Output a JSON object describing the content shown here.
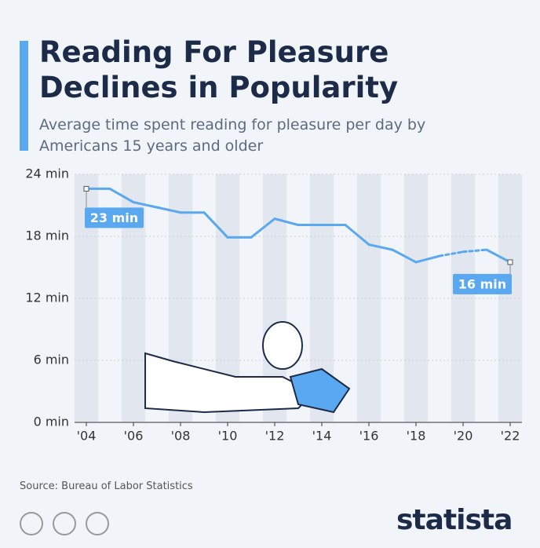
{
  "chart_data": {
    "type": "line",
    "title": "Reading For Pleasure Declines in Popularity",
    "subtitle": "Average time spent reading for pleasure per day by Americans 15 years and older",
    "x": [
      2004,
      2005,
      2006,
      2007,
      2008,
      2009,
      2010,
      2011,
      2012,
      2013,
      2014,
      2015,
      2016,
      2017,
      2018,
      2019,
      2020,
      2021,
      2022
    ],
    "series": [
      {
        "color": "#5aa8f0",
        "values": [
          22.6,
          22.6,
          21.3,
          20.8,
          20.3,
          20.3,
          17.9,
          17.9,
          19.7,
          19.1,
          19.1,
          19.1,
          17.2,
          16.7,
          15.5,
          16.1,
          16.5,
          16.7,
          15.5
        ],
        "value_labels": [
          "23 min",
          null,
          null,
          null,
          null,
          null,
          null,
          null,
          null,
          null,
          null,
          null,
          null,
          null,
          null,
          null,
          null,
          null,
          "16 min"
        ]
      }
    ],
    "dashed_from": 2019,
    "dashed_to": 2021,
    "xlim": [
      2003.5,
      2022.5
    ],
    "xticks": [
      {
        "value": 2004,
        "label": "'04"
      },
      {
        "value": 2006,
        "label": "'06"
      },
      {
        "value": 2008,
        "label": "'08"
      },
      {
        "value": 2010,
        "label": "'10"
      },
      {
        "value": 2012,
        "label": "'12"
      },
      {
        "value": 2014,
        "label": "'14"
      },
      {
        "value": 2016,
        "label": "'16"
      },
      {
        "value": 2018,
        "label": "'18"
      },
      {
        "value": 2020,
        "label": "'20"
      },
      {
        "value": 2022,
        "label": "'22"
      }
    ],
    "ylim": [
      0,
      24
    ],
    "yticks": [
      {
        "value": 0,
        "label": "0 min"
      },
      {
        "value": 6,
        "label": "6 min"
      },
      {
        "value": 12,
        "label": "12 min"
      },
      {
        "value": 18,
        "label": "18 min"
      },
      {
        "value": 24,
        "label": "24 min"
      }
    ],
    "grid": true,
    "source": "Source: Bureau of Labor Statistics",
    "brand": "statista"
  }
}
